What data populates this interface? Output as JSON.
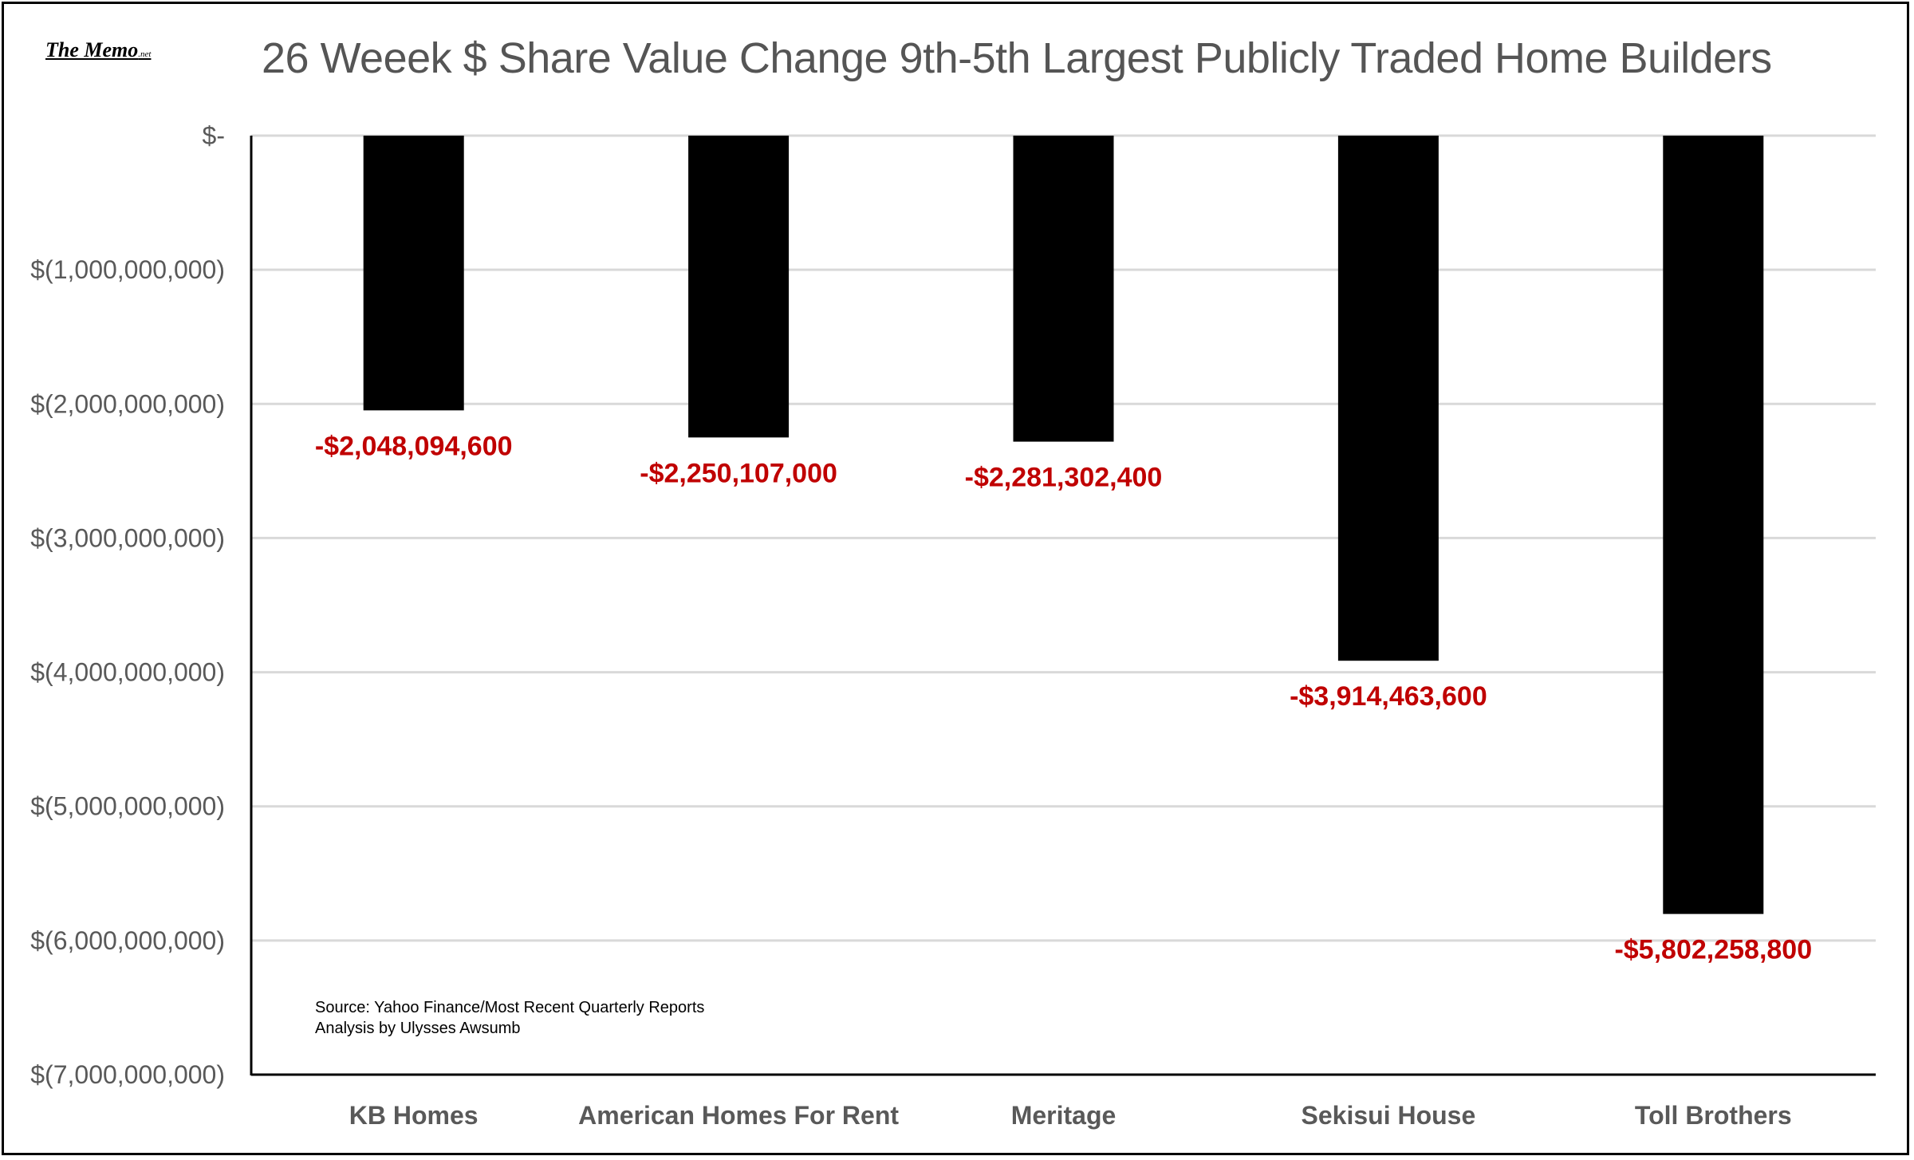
{
  "header": {
    "logo_text": "The Memo",
    "logo_suffix": ".net",
    "title": "26 Weeek $  Share Value Change 9th-5th Largest Publicly Traded Home Builders"
  },
  "source": {
    "line1": "Source: Yahoo Finance/Most Recent Quarterly Reports",
    "line2": "Analysis by Ulysses Awsumb"
  },
  "colors": {
    "bar": "#000000",
    "data_label": "#c00000",
    "axis_text": "#595959",
    "category_text": "#595959",
    "gridline": "#d9d9d9"
  },
  "chart_data": {
    "type": "bar",
    "title": "26 Weeek $  Share Value Change 9th-5th Largest Publicly Traded Home Builders",
    "categories": [
      "KB Homes",
      "American Homes For Rent",
      "Meritage",
      "Sekisui House",
      "Toll Brothers"
    ],
    "values": [
      -2048094600,
      -2250107000,
      -2281302400,
      -3914463600,
      -5802258800
    ],
    "data_labels": [
      "-$2,048,094,600",
      "-$2,250,107,000",
      "-$2,281,302,400",
      "-$3,914,463,600",
      "-$5,802,258,800"
    ],
    "ylim": [
      -7000000000,
      0
    ],
    "y_ticks": [
      0,
      -1000000000,
      -2000000000,
      -3000000000,
      -4000000000,
      -5000000000,
      -6000000000,
      -7000000000
    ],
    "y_tick_labels": [
      "$-",
      "$(1,000,000,000)",
      "$(2,000,000,000)",
      "$(3,000,000,000)",
      "$(4,000,000,000)",
      "$(5,000,000,000)",
      "$(6,000,000,000)",
      "$(7,000,000,000)"
    ],
    "grid": true,
    "legend": "none",
    "xlabel": "",
    "ylabel": ""
  }
}
